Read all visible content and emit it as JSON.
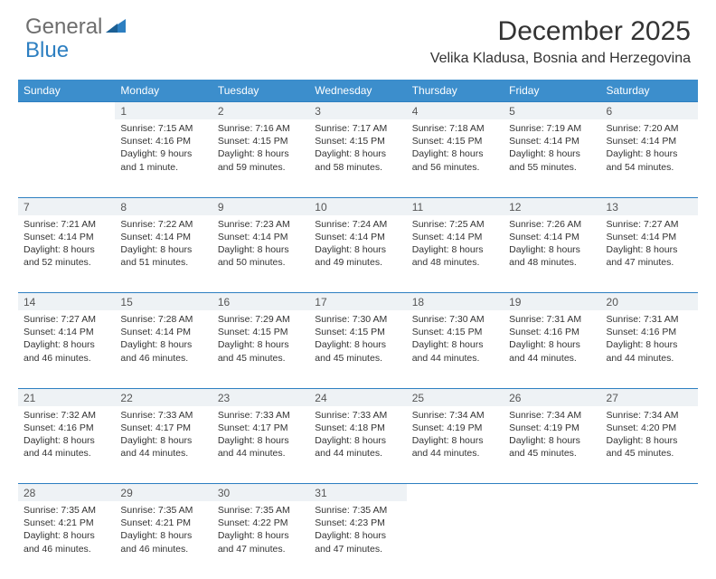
{
  "brand": {
    "part1": "General",
    "part2": "Blue"
  },
  "title": "December 2025",
  "location": "Velika Kladusa, Bosnia and Herzegovina",
  "colors": {
    "header_bg": "#3c8ecc",
    "header_text": "#ffffff",
    "daynum_bg": "#eef2f5",
    "daynum_border": "#2d7fc1",
    "body_text": "#333333",
    "logo_gray": "#6e6e6e",
    "logo_blue": "#2d7fc1"
  },
  "weekdays": [
    "Sunday",
    "Monday",
    "Tuesday",
    "Wednesday",
    "Thursday",
    "Friday",
    "Saturday"
  ],
  "weeks": [
    [
      null,
      {
        "n": "1",
        "sr": "7:15 AM",
        "ss": "4:16 PM",
        "dl": "9 hours and 1 minute."
      },
      {
        "n": "2",
        "sr": "7:16 AM",
        "ss": "4:15 PM",
        "dl": "8 hours and 59 minutes."
      },
      {
        "n": "3",
        "sr": "7:17 AM",
        "ss": "4:15 PM",
        "dl": "8 hours and 58 minutes."
      },
      {
        "n": "4",
        "sr": "7:18 AM",
        "ss": "4:15 PM",
        "dl": "8 hours and 56 minutes."
      },
      {
        "n": "5",
        "sr": "7:19 AM",
        "ss": "4:14 PM",
        "dl": "8 hours and 55 minutes."
      },
      {
        "n": "6",
        "sr": "7:20 AM",
        "ss": "4:14 PM",
        "dl": "8 hours and 54 minutes."
      }
    ],
    [
      {
        "n": "7",
        "sr": "7:21 AM",
        "ss": "4:14 PM",
        "dl": "8 hours and 52 minutes."
      },
      {
        "n": "8",
        "sr": "7:22 AM",
        "ss": "4:14 PM",
        "dl": "8 hours and 51 minutes."
      },
      {
        "n": "9",
        "sr": "7:23 AM",
        "ss": "4:14 PM",
        "dl": "8 hours and 50 minutes."
      },
      {
        "n": "10",
        "sr": "7:24 AM",
        "ss": "4:14 PM",
        "dl": "8 hours and 49 minutes."
      },
      {
        "n": "11",
        "sr": "7:25 AM",
        "ss": "4:14 PM",
        "dl": "8 hours and 48 minutes."
      },
      {
        "n": "12",
        "sr": "7:26 AM",
        "ss": "4:14 PM",
        "dl": "8 hours and 48 minutes."
      },
      {
        "n": "13",
        "sr": "7:27 AM",
        "ss": "4:14 PM",
        "dl": "8 hours and 47 minutes."
      }
    ],
    [
      {
        "n": "14",
        "sr": "7:27 AM",
        "ss": "4:14 PM",
        "dl": "8 hours and 46 minutes."
      },
      {
        "n": "15",
        "sr": "7:28 AM",
        "ss": "4:14 PM",
        "dl": "8 hours and 46 minutes."
      },
      {
        "n": "16",
        "sr": "7:29 AM",
        "ss": "4:15 PM",
        "dl": "8 hours and 45 minutes."
      },
      {
        "n": "17",
        "sr": "7:30 AM",
        "ss": "4:15 PM",
        "dl": "8 hours and 45 minutes."
      },
      {
        "n": "18",
        "sr": "7:30 AM",
        "ss": "4:15 PM",
        "dl": "8 hours and 44 minutes."
      },
      {
        "n": "19",
        "sr": "7:31 AM",
        "ss": "4:16 PM",
        "dl": "8 hours and 44 minutes."
      },
      {
        "n": "20",
        "sr": "7:31 AM",
        "ss": "4:16 PM",
        "dl": "8 hours and 44 minutes."
      }
    ],
    [
      {
        "n": "21",
        "sr": "7:32 AM",
        "ss": "4:16 PM",
        "dl": "8 hours and 44 minutes."
      },
      {
        "n": "22",
        "sr": "7:33 AM",
        "ss": "4:17 PM",
        "dl": "8 hours and 44 minutes."
      },
      {
        "n": "23",
        "sr": "7:33 AM",
        "ss": "4:17 PM",
        "dl": "8 hours and 44 minutes."
      },
      {
        "n": "24",
        "sr": "7:33 AM",
        "ss": "4:18 PM",
        "dl": "8 hours and 44 minutes."
      },
      {
        "n": "25",
        "sr": "7:34 AM",
        "ss": "4:19 PM",
        "dl": "8 hours and 44 minutes."
      },
      {
        "n": "26",
        "sr": "7:34 AM",
        "ss": "4:19 PM",
        "dl": "8 hours and 45 minutes."
      },
      {
        "n": "27",
        "sr": "7:34 AM",
        "ss": "4:20 PM",
        "dl": "8 hours and 45 minutes."
      }
    ],
    [
      {
        "n": "28",
        "sr": "7:35 AM",
        "ss": "4:21 PM",
        "dl": "8 hours and 46 minutes."
      },
      {
        "n": "29",
        "sr": "7:35 AM",
        "ss": "4:21 PM",
        "dl": "8 hours and 46 minutes."
      },
      {
        "n": "30",
        "sr": "7:35 AM",
        "ss": "4:22 PM",
        "dl": "8 hours and 47 minutes."
      },
      {
        "n": "31",
        "sr": "7:35 AM",
        "ss": "4:23 PM",
        "dl": "8 hours and 47 minutes."
      },
      null,
      null,
      null
    ]
  ],
  "labels": {
    "sunrise": "Sunrise:",
    "sunset": "Sunset:",
    "daylight": "Daylight:"
  }
}
